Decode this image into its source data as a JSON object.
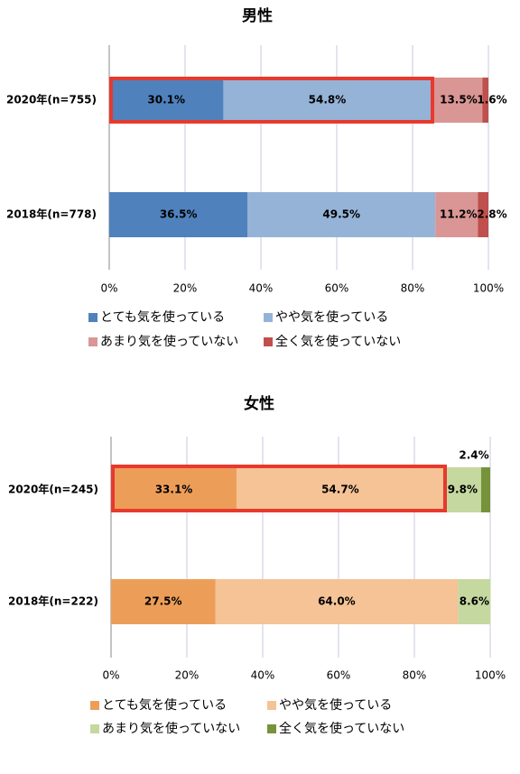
{
  "chart_data": [
    {
      "type": "bar",
      "orientation": "horizontal",
      "stacked": "percent",
      "title": "男性",
      "categories": [
        "2020年(n=755)",
        "2018年(n=778)"
      ],
      "series": [
        {
          "name": "とても気を使っている",
          "values": [
            30.1,
            36.5
          ],
          "labels": [
            "30.1%",
            "36.5%"
          ],
          "color": "#4f81bd"
        },
        {
          "name": "やや気を使っている",
          "values": [
            54.8,
            49.5
          ],
          "labels": [
            "54.8%",
            "49.5%"
          ],
          "color": "#95b3d7"
        },
        {
          "name": "あまり気を使っていない",
          "values": [
            13.5,
            11.2
          ],
          "labels": [
            "13.5%",
            "11.2%"
          ],
          "color": "#d99694"
        },
        {
          "name": "全く気を使っていない",
          "values": [
            1.6,
            2.8
          ],
          "labels": [
            "1.6%",
            "2.8%"
          ],
          "color": "#c0504d"
        }
      ],
      "xticks": [
        "0%",
        "20%",
        "40%",
        "60%",
        "80%",
        "100%"
      ],
      "xlim": [
        0,
        100
      ],
      "grid": true,
      "legend": "bottom",
      "highlight": {
        "category": "2020年(n=755)",
        "series": [
          "とても気を使っている",
          "やや気を使っている"
        ],
        "color": "#e8392d"
      }
    },
    {
      "type": "bar",
      "orientation": "horizontal",
      "stacked": "percent",
      "title": "女性",
      "categories": [
        "2020年(n=245)",
        "2018年(n=222)"
      ],
      "series": [
        {
          "name": "とても気を使っている",
          "values": [
            33.1,
            27.5
          ],
          "labels": [
            "33.1%",
            "27.5%"
          ],
          "color": "#ec9e59"
        },
        {
          "name": "やや気を使っている",
          "values": [
            54.7,
            64.0
          ],
          "labels": [
            "54.7%",
            "64.0%"
          ],
          "color": "#f5c396"
        },
        {
          "name": "あまり気を使っていない",
          "values": [
            9.8,
            8.6
          ],
          "labels": [
            "9.8%",
            "8.6%"
          ],
          "color": "#c5d8a0"
        },
        {
          "name": "全く気を使っていない",
          "values": [
            2.4,
            0
          ],
          "labels": [
            "2.4%",
            ""
          ],
          "color": "#76933c"
        }
      ],
      "xticks": [
        "0%",
        "20%",
        "40%",
        "60%",
        "80%",
        "100%"
      ],
      "xlim": [
        0,
        100
      ],
      "grid": true,
      "legend": "bottom",
      "highlight": {
        "category": "2020年(n=245)",
        "series": [
          "とても気を使っている",
          "やや気を使っている"
        ],
        "color": "#e8392d"
      }
    }
  ]
}
